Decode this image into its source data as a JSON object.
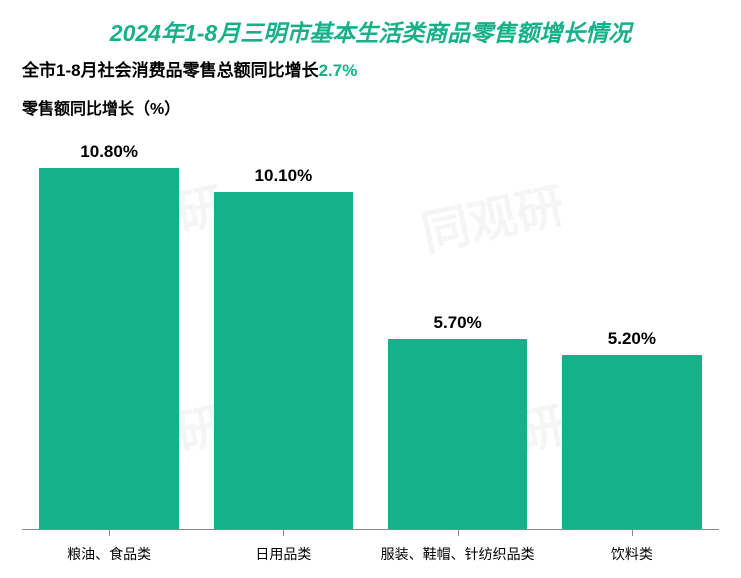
{
  "chart": {
    "type": "bar",
    "title": "2024年1-8月三明市基本生活类商品零售额增长情况",
    "title_color": "#16b089",
    "title_fontsize": 23,
    "subtitle_prefix": "全市1-8月社会消费品零售总额同比增长",
    "subtitle_value": "2.7%",
    "subtitle_fontsize": 17,
    "subtitle_prefix_color": "#000000",
    "subtitle_value_color": "#16b089",
    "ylabel": "零售额同比增长（%）",
    "ylabel_fontsize": 16,
    "ylabel_color": "#000000",
    "categories": [
      "粮油、食品类",
      "日用品类",
      "服装、鞋帽、针纺织品类",
      "饮料类"
    ],
    "values": [
      10.8,
      10.1,
      5.7,
      5.2
    ],
    "value_labels": [
      "10.80%",
      "10.10%",
      "5.70%",
      "5.20%"
    ],
    "bar_color": "#16b089",
    "value_label_color": "#000000",
    "value_label_fontsize": 17,
    "xaxis_label_fontsize": 14,
    "xaxis_label_color": "#000000",
    "axis_line_color": "#888888",
    "background_color": "#ffffff",
    "y_max": 12.0,
    "bar_width_ratio": 0.8,
    "watermark_text": "同观研"
  }
}
